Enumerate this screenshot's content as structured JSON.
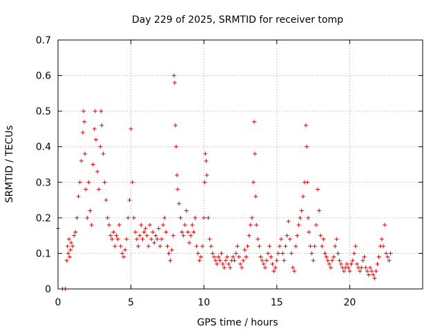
{
  "chart_data": {
    "type": "scatter",
    "title": "Day 229 of 2025, SRMTID for receiver tomp",
    "xlabel": "GPS time / hours",
    "ylabel": "SRMTID / TECUs",
    "xlim": [
      0,
      25
    ],
    "ylim": [
      0,
      0.7
    ],
    "xticks": [
      0,
      5,
      10,
      15,
      20
    ],
    "yticks": [
      0,
      0.1,
      0.2,
      0.3,
      0.4,
      0.5,
      0.6,
      0.7
    ],
    "grid": true,
    "marker": "+",
    "series": [
      {
        "name": "SRMTID",
        "color": "#e00000",
        "x": [
          0.0,
          0.3,
          0.5,
          0.6,
          0.65,
          0.7,
          0.75,
          0.8,
          0.85,
          0.9,
          1.0,
          1.1,
          1.2,
          1.3,
          1.4,
          1.5,
          1.6,
          1.7,
          1.75,
          1.8,
          1.85,
          1.9,
          2.0,
          2.1,
          2.2,
          2.3,
          2.4,
          2.5,
          2.55,
          2.6,
          2.7,
          2.8,
          2.9,
          2.95,
          3.0,
          3.1,
          3.2,
          3.3,
          3.4,
          3.5,
          3.6,
          3.7,
          3.8,
          3.9,
          4.0,
          4.1,
          4.2,
          4.3,
          4.4,
          4.5,
          4.6,
          4.7,
          4.8,
          4.9,
          5.0,
          5.1,
          5.2,
          5.3,
          5.4,
          5.5,
          5.6,
          5.7,
          5.8,
          5.9,
          6.0,
          6.1,
          6.2,
          6.3,
          6.4,
          6.5,
          6.6,
          6.7,
          6.8,
          6.9,
          7.0,
          7.1,
          7.2,
          7.3,
          7.4,
          7.5,
          7.6,
          7.7,
          7.8,
          7.9,
          7.95,
          8.0,
          8.05,
          8.1,
          8.15,
          8.2,
          8.3,
          8.4,
          8.5,
          8.6,
          8.7,
          8.8,
          8.9,
          9.0,
          9.1,
          9.2,
          9.3,
          9.4,
          9.5,
          9.6,
          9.7,
          9.8,
          9.9,
          10.0,
          10.05,
          10.1,
          10.15,
          10.2,
          10.3,
          10.4,
          10.5,
          10.6,
          10.7,
          10.8,
          10.9,
          11.0,
          11.1,
          11.2,
          11.3,
          11.4,
          11.5,
          11.6,
          11.7,
          11.8,
          11.9,
          12.0,
          12.1,
          12.2,
          12.3,
          12.4,
          12.5,
          12.6,
          12.7,
          12.8,
          12.9,
          13.0,
          13.1,
          13.2,
          13.3,
          13.4,
          13.45,
          13.5,
          13.55,
          13.6,
          13.7,
          13.8,
          13.9,
          14.0,
          14.1,
          14.2,
          14.3,
          14.4,
          14.5,
          14.6,
          14.7,
          14.8,
          14.9,
          15.0,
          15.1,
          15.2,
          15.3,
          15.4,
          15.5,
          15.6,
          15.7,
          15.8,
          15.9,
          16.0,
          16.1,
          16.2,
          16.3,
          16.4,
          16.5,
          16.6,
          16.7,
          16.8,
          16.9,
          17.0,
          17.05,
          17.1,
          17.15,
          17.2,
          17.3,
          17.4,
          17.5,
          17.6,
          17.7,
          17.8,
          17.9,
          18.0,
          18.1,
          18.2,
          18.3,
          18.4,
          18.5,
          18.6,
          18.7,
          18.8,
          18.9,
          19.0,
          19.1,
          19.2,
          19.3,
          19.4,
          19.5,
          19.6,
          19.7,
          19.8,
          19.9,
          20.0,
          20.1,
          20.2,
          20.3,
          20.4,
          20.5,
          20.6,
          20.7,
          20.8,
          20.9,
          21.0,
          21.1,
          21.2,
          21.3,
          21.4,
          21.5,
          21.6,
          21.7,
          21.8,
          21.9,
          22.0,
          22.1,
          22.2,
          22.3,
          22.4,
          22.5,
          22.6,
          22.7,
          22.8
        ],
        "y": [
          0.17,
          0.0,
          0.0,
          0.08,
          0.12,
          0.1,
          0.14,
          0.09,
          0.11,
          0.13,
          0.12,
          0.15,
          0.16,
          0.2,
          0.26,
          0.3,
          0.36,
          0.44,
          0.5,
          0.47,
          0.38,
          0.28,
          0.2,
          0.3,
          0.22,
          0.18,
          0.35,
          0.45,
          0.5,
          0.42,
          0.33,
          0.28,
          0.4,
          0.5,
          0.46,
          0.38,
          0.3,
          0.25,
          0.2,
          0.18,
          0.15,
          0.14,
          0.16,
          0.12,
          0.15,
          0.14,
          0.18,
          0.12,
          0.1,
          0.09,
          0.11,
          0.14,
          0.2,
          0.25,
          0.45,
          0.3,
          0.2,
          0.16,
          0.14,
          0.12,
          0.15,
          0.18,
          0.14,
          0.16,
          0.17,
          0.15,
          0.12,
          0.18,
          0.14,
          0.16,
          0.13,
          0.15,
          0.14,
          0.17,
          0.12,
          0.14,
          0.18,
          0.2,
          0.16,
          0.12,
          0.1,
          0.08,
          0.11,
          0.15,
          0.6,
          0.58,
          0.46,
          0.4,
          0.32,
          0.28,
          0.24,
          0.2,
          0.16,
          0.15,
          0.18,
          0.22,
          0.16,
          0.13,
          0.15,
          0.18,
          0.16,
          0.2,
          0.12,
          0.1,
          0.08,
          0.09,
          0.12,
          0.2,
          0.3,
          0.38,
          0.36,
          0.32,
          0.2,
          0.14,
          0.12,
          0.1,
          0.09,
          0.08,
          0.07,
          0.09,
          0.08,
          0.1,
          0.07,
          0.06,
          0.08,
          0.09,
          0.07,
          0.06,
          0.08,
          0.09,
          0.08,
          0.1,
          0.12,
          0.09,
          0.07,
          0.06,
          0.08,
          0.11,
          0.09,
          0.12,
          0.15,
          0.18,
          0.2,
          0.3,
          0.47,
          0.38,
          0.26,
          0.18,
          0.14,
          0.12,
          0.09,
          0.08,
          0.07,
          0.06,
          0.08,
          0.1,
          0.12,
          0.09,
          0.07,
          0.05,
          0.06,
          0.08,
          0.1,
          0.12,
          0.14,
          0.1,
          0.08,
          0.12,
          0.15,
          0.19,
          0.14,
          0.1,
          0.06,
          0.05,
          0.12,
          0.15,
          0.18,
          0.2,
          0.22,
          0.26,
          0.3,
          0.46,
          0.4,
          0.3,
          0.2,
          0.16,
          0.12,
          0.1,
          0.08,
          0.12,
          0.18,
          0.28,
          0.22,
          0.15,
          0.12,
          0.14,
          0.1,
          0.09,
          0.08,
          0.07,
          0.06,
          0.08,
          0.09,
          0.12,
          0.14,
          0.1,
          0.08,
          0.07,
          0.06,
          0.05,
          0.06,
          0.07,
          0.06,
          0.05,
          0.07,
          0.08,
          0.1,
          0.12,
          0.07,
          0.06,
          0.05,
          0.06,
          0.08,
          0.09,
          0.06,
          0.05,
          0.04,
          0.06,
          0.05,
          0.04,
          0.03,
          0.05,
          0.07,
          0.09,
          0.12,
          0.14,
          0.12,
          0.18,
          0.1,
          0.09,
          0.08,
          0.1
        ]
      }
    ]
  }
}
